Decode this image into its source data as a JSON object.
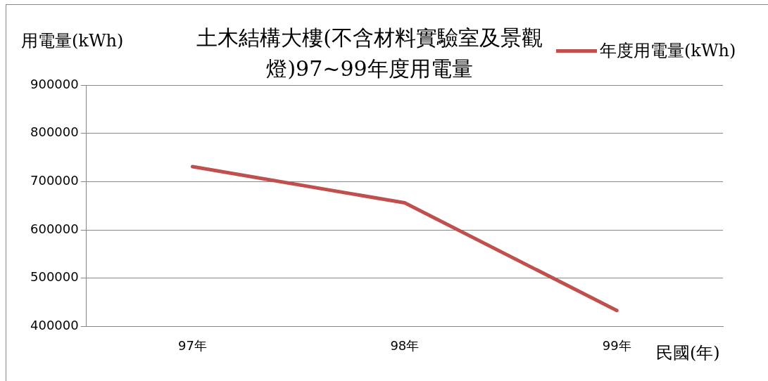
{
  "chart_data": {
    "type": "line",
    "title": "土木結構大樓(不含材料實驗室及景觀燈)97~99年度用電量",
    "ylabel": "用電量(kWh)",
    "xlabel": "民國(年)",
    "categories": [
      "97年",
      "98年",
      "99年"
    ],
    "series": [
      {
        "name": "年度用電量(kWh)",
        "color": "#c0504d",
        "values": [
          731000,
          656000,
          433000
        ]
      }
    ],
    "ylim": [
      400000,
      900000
    ],
    "yticks": [
      400000,
      500000,
      600000,
      700000,
      800000,
      900000
    ],
    "grid": "y",
    "legend": "top right",
    "marker": "none",
    "line_style": "solid"
  }
}
